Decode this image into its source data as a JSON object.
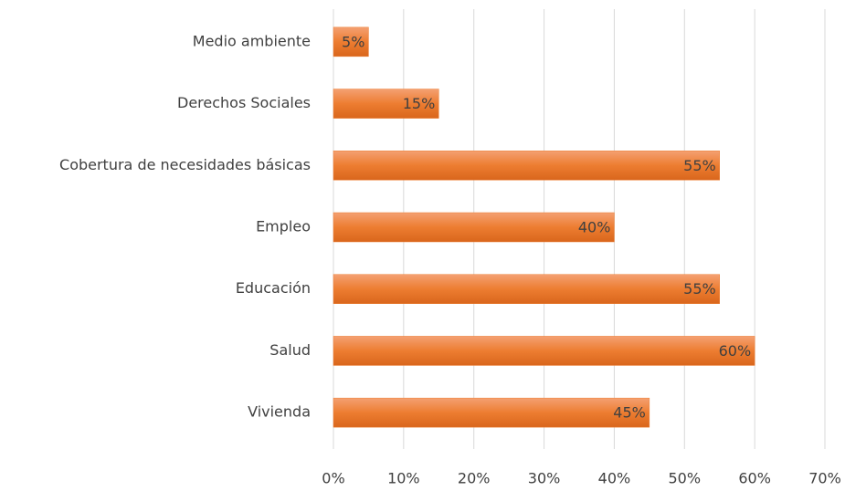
{
  "chart_data": {
    "type": "hbar",
    "categories": [
      "Medio ambiente",
      "Derechos Sociales",
      "Cobertura de necesidades básicas",
      "Empleo",
      "Educación",
      "Salud",
      "Vivienda"
    ],
    "values": [
      5,
      15,
      55,
      40,
      55,
      60,
      45
    ],
    "value_labels": [
      "5%",
      "15%",
      "55%",
      "40%",
      "55%",
      "60%",
      "45%"
    ],
    "color": "#ed7d31",
    "xlim": [
      0,
      70
    ],
    "xticks": [
      {
        "value": 0,
        "label": "0%"
      },
      {
        "value": 10,
        "label": "10%"
      },
      {
        "value": 20,
        "label": "20%"
      },
      {
        "value": 30,
        "label": "30%"
      },
      {
        "value": 40,
        "label": "40%"
      },
      {
        "value": 50,
        "label": "50%"
      },
      {
        "value": 60,
        "label": "60%"
      },
      {
        "value": 70,
        "label": "70%"
      }
    ],
    "grid": true
  }
}
